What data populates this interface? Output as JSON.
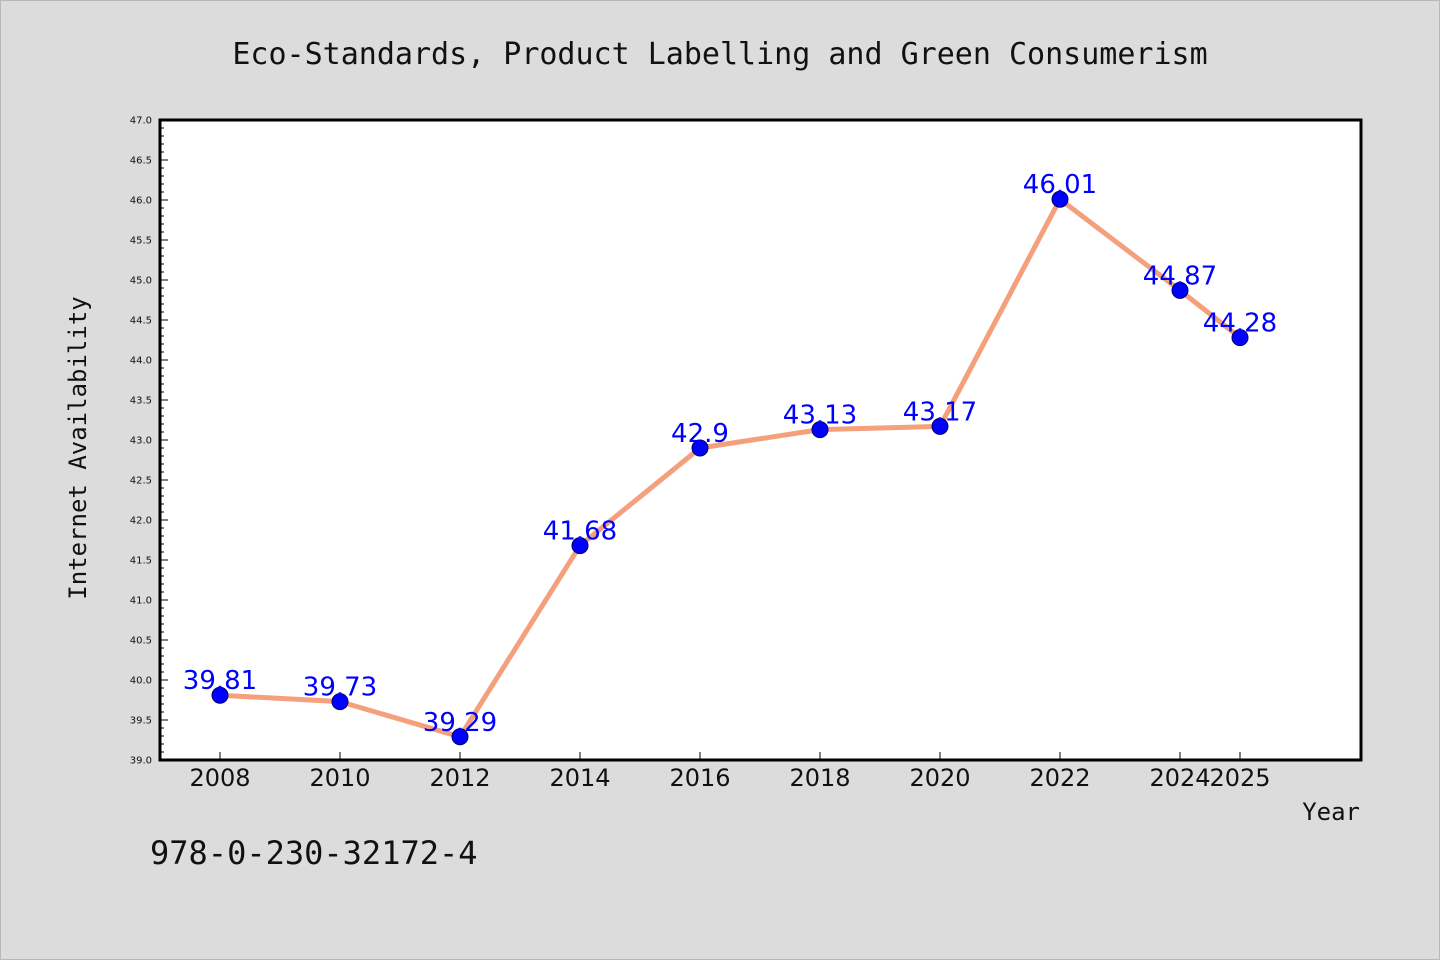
{
  "chart_data": {
    "type": "line",
    "title": "Eco-Standards, Product Labelling and Green Consumerism",
    "xlabel": "Year",
    "ylabel": "Internet Availability",
    "x": [
      2008,
      2010,
      2012,
      2014,
      2016,
      2018,
      2020,
      2022,
      2024,
      2025
    ],
    "x_tick_labels": [
      "2008",
      "2010",
      "2012",
      "2014",
      "2016",
      "2018",
      "2020",
      "2022",
      "2024",
      "2025"
    ],
    "series": [
      {
        "values": [
          39.81,
          39.73,
          39.29,
          41.68,
          42.9,
          43.13,
          43.17,
          46.01,
          44.87,
          44.28
        ],
        "data_labels": [
          "39.81",
          "39.73",
          "39.29",
          "41.68",
          "42.9",
          "43.13",
          "43.17",
          "46.01",
          "44.87",
          "44.28"
        ]
      }
    ],
    "ylim": [
      39.0,
      47.0
    ],
    "y_ticks": [
      39.0,
      39.5,
      40.0,
      40.5,
      41.0,
      41.5,
      42.0,
      42.5,
      43.0,
      43.5,
      44.0,
      44.5,
      45.0,
      45.5,
      46.0,
      46.5,
      47.0
    ],
    "y_tick_labels": [
      "39.0",
      "39.5",
      "40.0",
      "40.5",
      "41.0",
      "41.5",
      "42.0",
      "42.5",
      "43.0",
      "43.5",
      "44.0",
      "44.5",
      "45.0",
      "45.5",
      "46.0",
      "46.5",
      "47.0"
    ],
    "grid": false,
    "legend": "none",
    "line_color": "#f4a07c",
    "marker_color": "#0000ff",
    "label_color": "#0000ff",
    "background_color": "#dcdcdc",
    "plot_background_color": "#ffffff"
  },
  "footer": {
    "isbn": "978-0-230-32172-4"
  }
}
